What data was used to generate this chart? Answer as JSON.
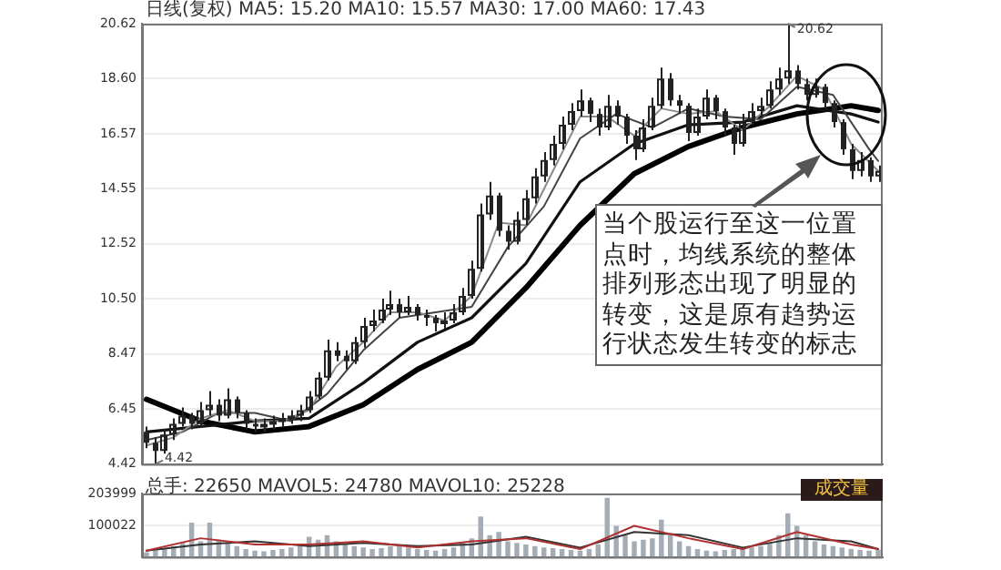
{
  "chart_data": [
    {
      "type": "candlestick",
      "title": "日线(复权)  MA5: 15.20  MA10: 15.57  MA30: 17.00  MA60: 17.43",
      "categories": [
        null,
        null,
        null,
        null,
        null,
        null,
        null,
        null,
        null,
        null,
        null,
        null,
        null,
        null,
        null,
        null,
        null,
        null,
        null,
        null,
        null,
        null,
        null,
        null,
        null,
        null,
        null,
        null,
        null,
        null,
        null,
        null,
        null,
        null,
        null,
        null,
        null,
        null,
        null,
        null,
        null,
        null,
        null,
        null,
        null,
        null,
        null,
        null,
        null,
        null,
        null,
        null,
        null,
        null,
        null,
        null,
        null,
        null,
        null,
        null,
        null,
        null,
        null,
        null,
        null,
        null,
        null,
        null,
        null,
        null,
        null,
        null,
        null,
        null,
        null,
        null,
        null,
        null,
        null,
        null,
        null,
        null
      ],
      "color": "#222222",
      "ohlc": [
        [
          5.6,
          5.8,
          5.0,
          5.2
        ],
        [
          5.2,
          5.4,
          4.42,
          4.9
        ],
        [
          4.9,
          5.7,
          4.8,
          5.5
        ],
        [
          5.5,
          6.1,
          5.3,
          5.9
        ],
        [
          5.9,
          6.5,
          5.8,
          6.2
        ],
        [
          6.2,
          6.3,
          5.7,
          5.9
        ],
        [
          5.9,
          6.7,
          5.8,
          6.4
        ],
        [
          6.4,
          7.1,
          6.2,
          6.6
        ],
        [
          6.6,
          6.8,
          6.0,
          6.2
        ],
        [
          6.2,
          7.2,
          6.1,
          6.8
        ],
        [
          6.8,
          6.9,
          6.1,
          6.3
        ],
        [
          6.3,
          6.4,
          5.7,
          5.9
        ],
        [
          5.9,
          6.1,
          5.6,
          5.8
        ],
        [
          5.8,
          6.1,
          5.6,
          5.9
        ],
        [
          5.9,
          6.2,
          5.7,
          6.0
        ],
        [
          6.0,
          6.3,
          5.8,
          6.1
        ],
        [
          6.1,
          6.4,
          5.9,
          6.2
        ],
        [
          6.2,
          6.6,
          6.0,
          6.4
        ],
        [
          6.4,
          7.1,
          6.3,
          6.9
        ],
        [
          6.9,
          7.8,
          6.8,
          7.6
        ],
        [
          7.6,
          9.0,
          7.5,
          8.6
        ],
        [
          8.6,
          8.9,
          8.2,
          8.4
        ],
        [
          8.4,
          8.6,
          7.9,
          8.2
        ],
        [
          8.2,
          9.1,
          8.1,
          8.9
        ],
        [
          8.9,
          9.8,
          8.7,
          9.5
        ],
        [
          9.5,
          10.1,
          9.3,
          9.7
        ],
        [
          9.7,
          10.5,
          9.6,
          10.1
        ],
        [
          10.1,
          10.8,
          9.9,
          10.3
        ],
        [
          10.3,
          10.5,
          9.8,
          10.0
        ],
        [
          10.0,
          10.6,
          9.9,
          10.2
        ],
        [
          10.2,
          10.3,
          9.7,
          9.9
        ],
        [
          9.9,
          10.1,
          9.5,
          9.8
        ],
        [
          9.8,
          9.9,
          9.3,
          9.6
        ],
        [
          9.6,
          10.0,
          9.4,
          9.7
        ],
        [
          9.7,
          10.3,
          9.6,
          10.0
        ],
        [
          10.0,
          10.9,
          9.9,
          10.6
        ],
        [
          10.6,
          11.9,
          10.5,
          11.6
        ],
        [
          11.6,
          14.0,
          11.5,
          13.6
        ],
        [
          13.6,
          14.8,
          13.4,
          14.3
        ],
        [
          14.3,
          14.4,
          12.8,
          13.0
        ],
        [
          13.0,
          13.2,
          12.3,
          12.6
        ],
        [
          12.6,
          13.7,
          12.5,
          13.4
        ],
        [
          13.4,
          14.5,
          13.2,
          14.2
        ],
        [
          14.2,
          15.3,
          14.0,
          15.0
        ],
        [
          15.0,
          15.9,
          14.8,
          15.6
        ],
        [
          15.6,
          16.5,
          15.4,
          16.2
        ],
        [
          16.2,
          17.2,
          16.0,
          16.9
        ],
        [
          16.9,
          17.7,
          16.7,
          17.4
        ],
        [
          17.4,
          18.2,
          17.2,
          17.8
        ],
        [
          17.8,
          17.9,
          17.0,
          17.3
        ],
        [
          17.3,
          17.5,
          16.5,
          16.8
        ],
        [
          16.8,
          18.0,
          16.7,
          17.6
        ],
        [
          17.6,
          17.8,
          16.9,
          17.2
        ],
        [
          17.2,
          17.3,
          16.2,
          16.5
        ],
        [
          16.5,
          16.7,
          15.6,
          16.0
        ],
        [
          16.0,
          17.1,
          15.9,
          16.8
        ],
        [
          16.8,
          17.9,
          16.7,
          17.6
        ],
        [
          17.6,
          19.0,
          17.5,
          18.6
        ],
        [
          18.6,
          18.8,
          17.6,
          17.8
        ],
        [
          17.8,
          18.0,
          17.3,
          17.6
        ],
        [
          17.6,
          17.7,
          16.3,
          16.6
        ],
        [
          16.6,
          17.5,
          16.5,
          17.2
        ],
        [
          17.2,
          18.2,
          17.1,
          17.9
        ],
        [
          17.9,
          18.0,
          17.1,
          17.4
        ],
        [
          17.4,
          17.5,
          16.5,
          16.8
        ],
        [
          16.8,
          16.9,
          15.8,
          16.2
        ],
        [
          16.2,
          17.3,
          16.1,
          17.0
        ],
        [
          17.0,
          17.7,
          16.9,
          17.4
        ],
        [
          17.4,
          17.9,
          17.2,
          17.6
        ],
        [
          17.6,
          18.5,
          17.5,
          18.2
        ],
        [
          18.2,
          19.0,
          18.0,
          18.6
        ],
        [
          18.6,
          20.62,
          18.4,
          18.9
        ],
        [
          18.9,
          19.1,
          18.2,
          18.4
        ],
        [
          18.4,
          18.6,
          17.8,
          18.0
        ],
        [
          18.0,
          18.6,
          17.9,
          18.3
        ],
        [
          18.3,
          18.4,
          17.5,
          17.7
        ],
        [
          17.7,
          17.8,
          16.8,
          17.0
        ],
        [
          17.0,
          17.1,
          15.8,
          16.0
        ],
        [
          16.0,
          16.2,
          14.9,
          15.2
        ],
        [
          15.2,
          15.9,
          15.0,
          15.6
        ],
        [
          15.6,
          15.7,
          14.8,
          15.0
        ],
        [
          15.0,
          15.4,
          14.8,
          15.2
        ]
      ],
      "series": [
        {
          "type": "line",
          "color": "#8a8a8a",
          "values": [
            5.1,
            null,
            null,
            5.4,
            null,
            null,
            6.1,
            null,
            null,
            6.4,
            null,
            null,
            6.0,
            null,
            null,
            6.0,
            null,
            null,
            6.4,
            null,
            null,
            8.0,
            null,
            null,
            8.9,
            null,
            null,
            10.0,
            null,
            null,
            10.0,
            null,
            null,
            9.7,
            null,
            null,
            10.6,
            null,
            null,
            13.3,
            null,
            null,
            13.2,
            null,
            null,
            15.2,
            null,
            null,
            17.2,
            null,
            null,
            17.2,
            null,
            null,
            16.5,
            null,
            null,
            17.5,
            null,
            null,
            17.3,
            null,
            null,
            17.4,
            null,
            null,
            16.7,
            null,
            null,
            17.6,
            null,
            null,
            18.7,
            null,
            null,
            18.2,
            null,
            null,
            16.2,
            null,
            null,
            15.2
          ]
        },
        {
          "type": "line",
          "color": "#444444",
          "values": [
            5.3,
            null,
            null,
            null,
            5.6,
            null,
            null,
            null,
            6.3,
            null,
            null,
            null,
            6.3,
            null,
            null,
            null,
            6.0,
            null,
            null,
            null,
            7.0,
            null,
            null,
            null,
            8.6,
            null,
            null,
            null,
            9.8,
            null,
            null,
            null,
            10.0,
            null,
            null,
            null,
            10.2,
            null,
            null,
            null,
            12.4,
            null,
            null,
            null,
            13.9,
            null,
            null,
            null,
            16.4,
            null,
            null,
            null,
            17.3,
            null,
            null,
            null,
            16.8,
            null,
            null,
            null,
            17.5,
            null,
            null,
            null,
            17.2,
            null,
            null,
            null,
            17.1,
            null,
            null,
            null,
            18.3,
            null,
            null,
            null,
            18.0,
            null,
            null,
            null,
            16.0,
            15.57
          ]
        },
        {
          "type": "line",
          "color": "#111111",
          "values": [
            5.6,
            null,
            null,
            null,
            null,
            null,
            5.8,
            null,
            null,
            null,
            null,
            null,
            6.0,
            null,
            null,
            null,
            null,
            null,
            6.1,
            null,
            null,
            null,
            null,
            null,
            7.4,
            null,
            null,
            null,
            null,
            null,
            8.9,
            null,
            null,
            null,
            null,
            null,
            9.8,
            null,
            null,
            null,
            null,
            null,
            11.8,
            null,
            null,
            null,
            null,
            null,
            14.8,
            null,
            null,
            null,
            null,
            null,
            16.2,
            null,
            null,
            null,
            null,
            null,
            16.9,
            null,
            null,
            null,
            null,
            null,
            17.0,
            null,
            null,
            null,
            null,
            null,
            17.6,
            null,
            null,
            null,
            null,
            null,
            17.3,
            null,
            null,
            17.0
          ]
        },
        {
          "type": "line",
          "color": "#000000",
          "values": [
            6.8,
            null,
            null,
            null,
            null,
            null,
            6.0,
            null,
            null,
            null,
            null,
            null,
            5.6,
            null,
            null,
            null,
            null,
            null,
            5.8,
            null,
            null,
            null,
            null,
            null,
            6.6,
            null,
            null,
            null,
            null,
            null,
            7.9,
            null,
            null,
            null,
            null,
            null,
            8.9,
            null,
            null,
            null,
            null,
            null,
            10.9,
            null,
            null,
            null,
            null,
            null,
            13.2,
            null,
            null,
            null,
            null,
            null,
            15.1,
            null,
            null,
            null,
            null,
            null,
            16.1,
            null,
            null,
            null,
            null,
            null,
            16.8,
            null,
            null,
            null,
            null,
            null,
            17.3,
            null,
            null,
            null,
            null,
            null,
            17.6,
            null,
            null,
            17.43
          ]
        }
      ],
      "ylim": [
        4.42,
        20.62
      ],
      "yticks": [
        4.42,
        6.45,
        8.47,
        {
          "value": 10.5,
          "label": "10.50"
        },
        12.52,
        14.55,
        16.57,
        {
          "value": 18.6,
          "label": "18.60"
        },
        20.62
      ],
      "grid": "y",
      "tick_labels": "y",
      "marker": "none",
      "annotations": [
        "20.62",
        "4.42",
        "当个股运行至这一位置点时，均线系统的整体排列形态出现了明显的转变，这是原有趋势运行状态发生转变的标志"
      ]
    },
    {
      "type": "bar",
      "title": "总手: 22650  MAVOL5: 24780  MAVOL10: 25228",
      "categories": [
        null,
        null,
        null,
        null,
        null,
        null,
        null,
        null,
        null,
        null,
        null,
        null,
        null,
        null,
        null,
        null,
        null,
        null,
        null,
        null,
        null,
        null,
        null,
        null,
        null,
        null,
        null,
        null,
        null,
        null,
        null,
        null,
        null,
        null,
        null,
        null,
        null,
        null,
        null,
        null,
        null,
        null,
        null,
        null,
        null,
        null,
        null,
        null,
        null,
        null,
        null,
        null,
        null,
        null,
        null,
        null,
        null,
        null,
        null,
        null,
        null,
        null,
        null,
        null,
        null,
        null,
        null,
        null,
        null,
        null,
        null,
        null,
        null,
        null,
        null,
        null,
        null,
        null,
        null,
        null,
        null,
        null
      ],
      "series": [
        {
          "type": "bar",
          "color": "#a4adb5",
          "values": [
            15000,
            20000,
            25000,
            35000,
            45000,
            110000,
            50000,
            110000,
            55000,
            45000,
            35000,
            25000,
            20000,
            18000,
            22000,
            25000,
            30000,
            40000,
            65000,
            55000,
            70000,
            50000,
            40000,
            35000,
            30000,
            25000,
            28000,
            35000,
            40000,
            30000,
            25000,
            22000,
            20000,
            25000,
            30000,
            45000,
            60000,
            130000,
            70000,
            80000,
            50000,
            45000,
            40000,
            35000,
            30000,
            28000,
            25000,
            22000,
            20000,
            25000,
            40000,
            190000,
            100000,
            70000,
            50000,
            55000,
            60000,
            120000,
            70000,
            50000,
            35000,
            25000,
            20000,
            18000,
            22000,
            25000,
            28000,
            30000,
            35000,
            45000,
            70000,
            140000,
            100000,
            70000,
            50000,
            40000,
            35000,
            30000,
            25000,
            22000,
            20000,
            23000
          ]
        },
        {
          "type": "line",
          "color": "#b03030",
          "values": [
            20000,
            null,
            null,
            null,
            null,
            null,
            60000,
            null,
            null,
            null,
            null,
            null,
            40000,
            null,
            null,
            null,
            null,
            null,
            40000,
            null,
            null,
            null,
            null,
            null,
            50000,
            null,
            null,
            null,
            null,
            null,
            30000,
            null,
            null,
            null,
            null,
            null,
            50000,
            null,
            null,
            null,
            null,
            null,
            60000,
            null,
            null,
            null,
            null,
            null,
            25000,
            null,
            null,
            null,
            null,
            null,
            100000,
            null,
            null,
            null,
            null,
            null,
            60000,
            null,
            null,
            null,
            null,
            null,
            25000,
            null,
            null,
            null,
            null,
            null,
            80000,
            null,
            null,
            null,
            null,
            null,
            40000,
            null,
            null,
            25000
          ]
        },
        {
          "type": "line",
          "color": "#333333",
          "values": [
            20000,
            null,
            null,
            null,
            null,
            null,
            40000,
            null,
            null,
            null,
            null,
            null,
            50000,
            null,
            null,
            null,
            null,
            null,
            35000,
            null,
            null,
            null,
            null,
            null,
            45000,
            null,
            null,
            null,
            null,
            null,
            35000,
            null,
            null,
            null,
            null,
            null,
            40000,
            null,
            null,
            null,
            null,
            null,
            65000,
            null,
            null,
            null,
            null,
            null,
            30000,
            null,
            null,
            null,
            null,
            null,
            80000,
            null,
            null,
            null,
            null,
            null,
            70000,
            null,
            null,
            null,
            null,
            null,
            30000,
            null,
            null,
            null,
            null,
            null,
            60000,
            null,
            null,
            null,
            null,
            null,
            50000,
            null,
            null,
            25000
          ]
        }
      ],
      "ylim": [
        0,
        203999
      ],
      "yticks": [
        100022,
        203999
      ],
      "grid": "y",
      "tick_labels": "y",
      "marker": "none",
      "annotations": [
        "成交量"
      ]
    }
  ]
}
